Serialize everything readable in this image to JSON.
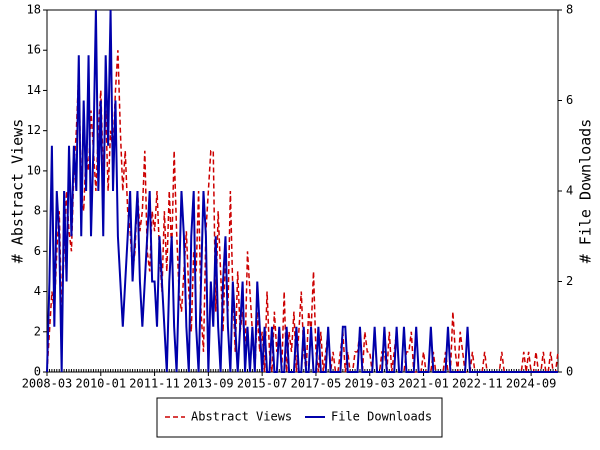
{
  "chart_data": {
    "type": "line",
    "y_label": "# Abstract Views",
    "y2_label": "# File Downloads",
    "x": [
      "2008-03",
      "2008-04",
      "2008-05",
      "2008-06",
      "2008-07",
      "2008-08",
      "2008-09",
      "2008-10",
      "2008-11",
      "2008-12",
      "2009-01",
      "2009-02",
      "2009-03",
      "2009-04",
      "2009-05",
      "2009-06",
      "2009-07",
      "2009-08",
      "2009-09",
      "2009-10",
      "2009-11",
      "2009-12",
      "2010-01",
      "2010-02",
      "2010-03",
      "2010-04",
      "2010-05",
      "2010-06",
      "2010-07",
      "2010-08",
      "2010-09",
      "2010-10",
      "2010-11",
      "2010-12",
      "2011-01",
      "2011-02",
      "2011-03",
      "2011-04",
      "2011-05",
      "2011-06",
      "2011-07",
      "2011-08",
      "2011-09",
      "2011-10",
      "2011-11",
      "2011-12",
      "2012-01",
      "2012-02",
      "2012-03",
      "2012-04",
      "2012-05",
      "2012-06",
      "2012-07",
      "2012-08",
      "2012-09",
      "2012-10",
      "2012-11",
      "2012-12",
      "2013-01",
      "2013-02",
      "2013-03",
      "2013-04",
      "2013-05",
      "2013-06",
      "2013-07",
      "2013-08",
      "2013-09",
      "2013-10",
      "2013-11",
      "2013-12",
      "2014-01",
      "2014-02",
      "2014-03",
      "2014-04",
      "2014-05",
      "2014-06",
      "2014-07",
      "2014-08",
      "2014-09",
      "2014-10",
      "2014-11",
      "2014-12",
      "2015-01",
      "2015-02",
      "2015-03",
      "2015-04",
      "2015-05",
      "2015-06",
      "2015-07",
      "2015-08",
      "2015-09",
      "2015-10",
      "2015-11",
      "2015-12",
      "2016-01",
      "2016-02",
      "2016-03",
      "2016-04",
      "2016-05",
      "2016-06",
      "2016-07",
      "2016-08",
      "2016-09",
      "2016-10",
      "2016-11",
      "2016-12",
      "2017-01",
      "2017-02",
      "2017-03",
      "2017-04",
      "2017-05",
      "2017-06",
      "2017-07",
      "2017-08",
      "2017-09",
      "2017-10",
      "2017-11",
      "2017-12",
      "2018-01",
      "2018-02",
      "2018-03",
      "2018-04",
      "2018-05",
      "2018-06",
      "2018-07",
      "2018-08",
      "2018-09",
      "2018-10",
      "2018-11",
      "2018-12",
      "2019-01",
      "2019-02",
      "2019-03",
      "2019-04",
      "2019-05",
      "2019-06",
      "2019-07",
      "2019-08",
      "2019-09",
      "2019-10",
      "2019-11",
      "2019-12",
      "2020-01",
      "2020-02",
      "2020-03",
      "2020-04",
      "2020-05",
      "2020-06",
      "2020-07",
      "2020-08",
      "2020-09",
      "2020-10",
      "2020-11",
      "2020-12",
      "2021-01",
      "2021-02",
      "2021-03",
      "2021-04",
      "2021-05",
      "2021-06",
      "2021-07",
      "2021-08",
      "2021-09",
      "2021-10",
      "2021-11",
      "2021-12",
      "2022-01",
      "2022-02",
      "2022-03",
      "2022-04",
      "2022-05",
      "2022-06",
      "2022-07",
      "2022-08",
      "2022-09",
      "2022-10",
      "2022-11",
      "2022-12",
      "2023-01",
      "2023-02",
      "2023-03",
      "2023-04",
      "2023-05",
      "2023-06",
      "2023-07",
      "2023-08",
      "2023-09",
      "2023-10",
      "2023-11",
      "2023-12",
      "2024-01",
      "2024-02",
      "2024-03",
      "2024-04",
      "2024-05",
      "2024-06",
      "2024-07",
      "2024-08",
      "2024-09",
      "2024-10",
      "2024-11",
      "2024-12",
      "2025-01",
      "2025-02",
      "2025-03",
      "2025-04",
      "2025-05",
      "2025-06",
      "2025-07",
      "2025-08"
    ],
    "series": [
      {
        "name": "Abstract Views",
        "color": "#cc0000",
        "dash": true,
        "values": [
          0,
          2,
          4,
          3,
          6,
          8,
          3,
          6,
          9,
          7,
          6,
          10,
          12,
          15,
          9,
          8,
          11,
          10,
          13,
          11,
          9,
          12,
          14,
          10,
          13,
          9,
          12,
          11,
          14,
          16,
          12,
          9,
          11,
          8,
          7,
          5,
          6,
          9,
          7,
          8,
          11,
          6,
          5,
          8,
          7,
          9,
          6,
          4,
          8,
          5,
          9,
          6,
          11,
          7,
          4,
          3,
          5,
          7,
          4,
          2,
          6,
          5,
          9,
          3,
          1,
          7,
          9,
          11,
          11,
          3,
          8,
          5,
          2,
          6,
          3,
          9,
          4,
          1,
          5,
          2,
          3,
          1,
          6,
          4,
          2,
          0,
          3,
          1,
          2,
          0,
          4,
          1,
          0,
          3,
          1,
          2,
          0,
          4,
          0,
          2,
          1,
          3,
          0,
          2,
          4,
          1,
          0,
          3,
          2,
          5,
          1,
          0,
          2,
          0,
          1,
          2,
          0,
          1,
          0,
          0,
          1,
          2,
          0,
          1,
          0,
          0,
          1,
          1,
          2,
          0,
          2,
          1,
          1,
          0,
          2,
          0,
          0,
          1,
          1,
          0,
          2,
          0,
          1,
          2,
          0,
          0,
          0,
          1,
          1,
          2,
          0,
          0,
          0,
          0,
          1,
          0,
          0,
          0,
          1,
          0,
          0,
          0,
          0,
          1,
          0,
          0,
          3,
          1,
          0,
          2,
          1,
          0,
          0,
          0,
          1,
          0,
          0,
          0,
          0,
          1,
          0,
          0,
          0,
          0,
          0,
          0,
          1,
          0,
          0,
          0,
          0,
          0,
          0,
          0,
          0,
          1,
          0,
          1,
          0,
          0,
          1,
          0,
          0,
          1,
          0,
          0,
          1,
          0,
          0,
          1
        ]
      },
      {
        "name": "File Downloads",
        "color": "#0000aa",
        "dash": false,
        "axis": "y2",
        "values": [
          0,
          2,
          5,
          1,
          4,
          3,
          0,
          4,
          2,
          5,
          3,
          5,
          4,
          7,
          3,
          6,
          4,
          7,
          3,
          5,
          8,
          4,
          6,
          3,
          7,
          5,
          8,
          4,
          6,
          3,
          2,
          1,
          2,
          3,
          4,
          2,
          3,
          4,
          2,
          1,
          2,
          3,
          4,
          2,
          2,
          1,
          3,
          2,
          1,
          0,
          2,
          3,
          1,
          0,
          2,
          4,
          3,
          1,
          0,
          3,
          4,
          1,
          0,
          2,
          4,
          3,
          0,
          2,
          1,
          3,
          1,
          0,
          2,
          3,
          1,
          0,
          2,
          1,
          0,
          1,
          2,
          0,
          1,
          0,
          1,
          0,
          2,
          1,
          0,
          1,
          0,
          0,
          1,
          0,
          0,
          1,
          0,
          0,
          1,
          0,
          0,
          0,
          1,
          0,
          0,
          1,
          0,
          0,
          1,
          0,
          0,
          1,
          0,
          0,
          0,
          1,
          0,
          0,
          0,
          0,
          0,
          1,
          1,
          0,
          0,
          0,
          0,
          0,
          1,
          0,
          0,
          0,
          0,
          0,
          1,
          0,
          0,
          0,
          1,
          0,
          0,
          0,
          0,
          1,
          0,
          0,
          1,
          0,
          0,
          0,
          0,
          1,
          0,
          0,
          0,
          0,
          0,
          1,
          0,
          0,
          0,
          0,
          0,
          0,
          1,
          0,
          0,
          0,
          0,
          0,
          0,
          0,
          1,
          0,
          0,
          0,
          0,
          0,
          0,
          0,
          0,
          0,
          0,
          0,
          0,
          0,
          0,
          0,
          0,
          0,
          0,
          0,
          0,
          0,
          0,
          0,
          0,
          0,
          0,
          0,
          0,
          0,
          0,
          0,
          0,
          0,
          0,
          0,
          0,
          0
        ]
      }
    ],
    "xlim": [
      "2008-03",
      "2025-08"
    ],
    "xticks": [
      "2008-03",
      "2010-01",
      "2011-11",
      "2013-09",
      "2015-07",
      "2017-05",
      "2019-03",
      "2021-01",
      "2022-11",
      "2024-09"
    ],
    "ylim": [
      0,
      18
    ],
    "yticks": [
      0,
      2,
      4,
      6,
      8,
      10,
      12,
      14,
      16,
      18
    ],
    "y2lim": [
      0,
      8
    ],
    "y2ticks": [
      0,
      2,
      4,
      6,
      8
    ]
  }
}
